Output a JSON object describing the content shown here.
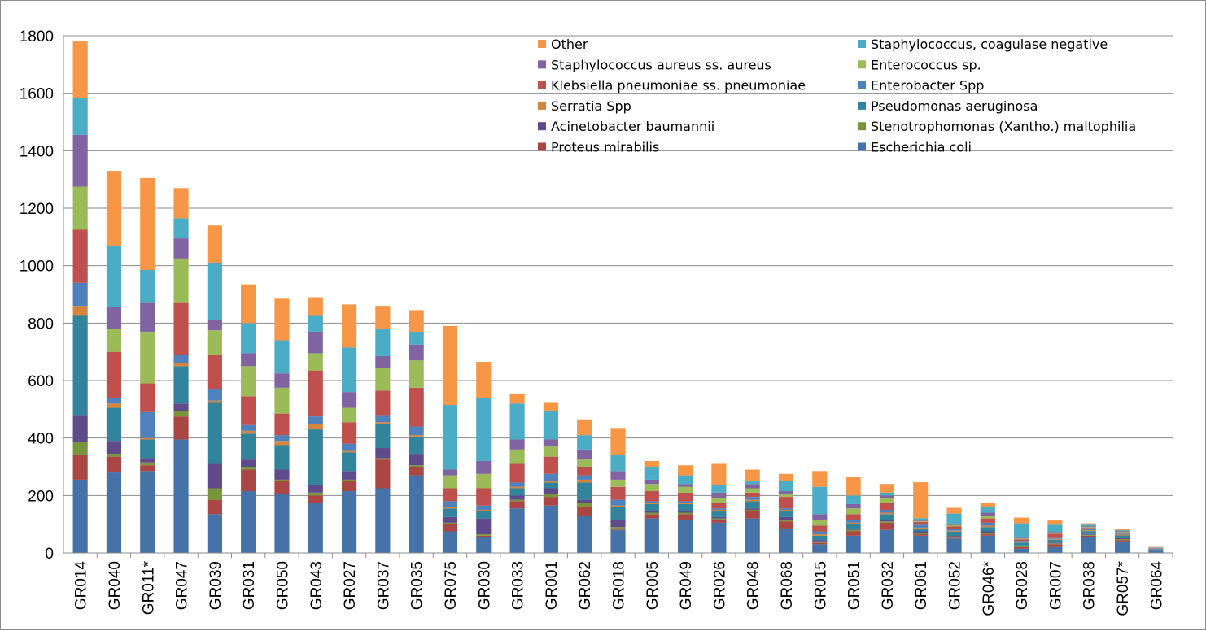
{
  "chart_data": {
    "type": "bar",
    "stacked": true,
    "title": "",
    "xlabel": "",
    "ylabel": "",
    "ylim": [
      0,
      1800
    ],
    "yticks": [
      0,
      200,
      400,
      600,
      800,
      1000,
      1200,
      1400,
      1600,
      1800
    ],
    "grid": "horizontal",
    "legend_position": "top-right",
    "categories": [
      "GR014",
      "GR040",
      "GR011*",
      "GR047",
      "GR039",
      "GR031",
      "GR050",
      "GR043",
      "GR027",
      "GR037",
      "GR035",
      "GR075",
      "GR030",
      "GR033",
      "GR001",
      "GR062",
      "GR018",
      "GR005",
      "GR049",
      "GR026",
      "GR048",
      "GR068",
      "GR015",
      "GR051",
      "GR032",
      "GR061",
      "GR052",
      "GR046*",
      "GR028",
      "GR007",
      "GR038",
      "GR057*",
      "GR064"
    ],
    "series": [
      {
        "name": "Escherichia coli",
        "color": "#4572a7",
        "values": [
          255,
          280,
          285,
          395,
          135,
          215,
          205,
          175,
          215,
          225,
          270,
          75,
          55,
          155,
          165,
          130,
          80,
          120,
          115,
          105,
          120,
          85,
          30,
          60,
          80,
          60,
          50,
          60,
          15,
          20,
          55,
          40,
          8
        ]
      },
      {
        "name": "Proteus mirabilis",
        "color": "#aa4643",
        "values": [
          85,
          55,
          20,
          80,
          50,
          75,
          45,
          25,
          35,
          100,
          30,
          25,
          5,
          25,
          30,
          30,
          5,
          15,
          20,
          10,
          25,
          25,
          5,
          15,
          25,
          5,
          3,
          5,
          5,
          10,
          5,
          5,
          2
        ]
      },
      {
        "name": "Stenotrophomonas (Xantho.) maltophilia",
        "color": "#77953b",
        "values": [
          45,
          10,
          10,
          20,
          40,
          10,
          5,
          10,
          5,
          5,
          5,
          5,
          5,
          5,
          10,
          15,
          5,
          5,
          5,
          5,
          5,
          5,
          5,
          5,
          5,
          5,
          3,
          5,
          3,
          3,
          3,
          3,
          1
        ]
      },
      {
        "name": "Acinetobacter baumannii",
        "color": "#5f4b8b",
        "values": [
          95,
          45,
          15,
          25,
          85,
          25,
          35,
          25,
          30,
          35,
          40,
          20,
          55,
          15,
          20,
          10,
          25,
          5,
          5,
          5,
          5,
          10,
          5,
          5,
          5,
          5,
          3,
          5,
          3,
          3,
          3,
          3,
          1
        ]
      },
      {
        "name": "Pseudomonas aeruginosa",
        "color": "#31849b",
        "values": [
          345,
          115,
          65,
          130,
          215,
          90,
          85,
          195,
          65,
          85,
          60,
          30,
          25,
          25,
          20,
          60,
          45,
          25,
          25,
          20,
          25,
          20,
          15,
          15,
          20,
          10,
          15,
          15,
          10,
          10,
          10,
          10,
          2
        ]
      },
      {
        "name": "Serratia Spp",
        "color": "#d4843c",
        "values": [
          35,
          15,
          5,
          10,
          5,
          10,
          15,
          20,
          5,
          5,
          5,
          5,
          5,
          5,
          5,
          10,
          5,
          5,
          5,
          5,
          5,
          5,
          5,
          5,
          5,
          3,
          3,
          5,
          3,
          3,
          3,
          3,
          1
        ]
      },
      {
        "name": "Enterobacter Spp",
        "color": "#4f81bd",
        "values": [
          80,
          20,
          90,
          30,
          40,
          20,
          20,
          25,
          25,
          25,
          30,
          20,
          15,
          15,
          25,
          15,
          20,
          5,
          5,
          5,
          10,
          5,
          10,
          10,
          10,
          10,
          5,
          10,
          3,
          3,
          3,
          3,
          1
        ]
      },
      {
        "name": "Klebsiella pneumoniae ss. pneumoniae",
        "color": "#c0504d",
        "values": [
          185,
          160,
          100,
          180,
          120,
          100,
          75,
          160,
          75,
          85,
          135,
          45,
          60,
          65,
          60,
          30,
          45,
          35,
          30,
          20,
          15,
          40,
          20,
          20,
          25,
          10,
          10,
          15,
          5,
          15,
          5,
          3,
          1
        ]
      },
      {
        "name": "Enterococcus sp.",
        "color": "#9bbb59",
        "values": [
          150,
          80,
          180,
          155,
          85,
          105,
          90,
          60,
          50,
          80,
          95,
          45,
          50,
          50,
          35,
          25,
          25,
          25,
          20,
          15,
          15,
          10,
          20,
          20,
          15,
          3,
          5,
          10,
          3,
          3,
          3,
          3,
          1
        ]
      },
      {
        "name": "Staphylococcus aureus ss. aureus",
        "color": "#8064a2",
        "values": [
          180,
          75,
          100,
          70,
          35,
          45,
          50,
          75,
          55,
          40,
          55,
          20,
          45,
          35,
          25,
          35,
          30,
          15,
          10,
          20,
          15,
          10,
          20,
          15,
          10,
          5,
          5,
          10,
          3,
          3,
          3,
          3,
          1
        ]
      },
      {
        "name": "Staphylococcus, coagulase negative",
        "color": "#4bacc6",
        "values": [
          130,
          215,
          115,
          70,
          200,
          105,
          115,
          55,
          155,
          95,
          45,
          225,
          220,
          125,
          100,
          50,
          55,
          45,
          30,
          25,
          10,
          35,
          95,
          30,
          10,
          5,
          35,
          20,
          50,
          25,
          5,
          3,
          1
        ]
      },
      {
        "name": "Other",
        "color": "#f79646",
        "values": [
          195,
          260,
          320,
          105,
          130,
          135,
          145,
          65,
          150,
          80,
          75,
          275,
          125,
          35,
          30,
          55,
          95,
          20,
          35,
          75,
          40,
          25,
          55,
          65,
          30,
          125,
          20,
          15,
          20,
          15,
          5,
          3,
          1
        ]
      }
    ],
    "legend_order": [
      "Other",
      "Staphylococcus, coagulase negative",
      "Staphylococcus aureus ss. aureus",
      "Enterococcus sp.",
      "Klebsiella pneumoniae ss. pneumoniae",
      "Enterobacter Spp",
      "Serratia Spp",
      "Pseudomonas aeruginosa",
      "Acinetobacter baumannii",
      "Stenotrophomonas (Xantho.) maltophilia",
      "Proteus mirabilis",
      "Escherichia coli"
    ]
  }
}
